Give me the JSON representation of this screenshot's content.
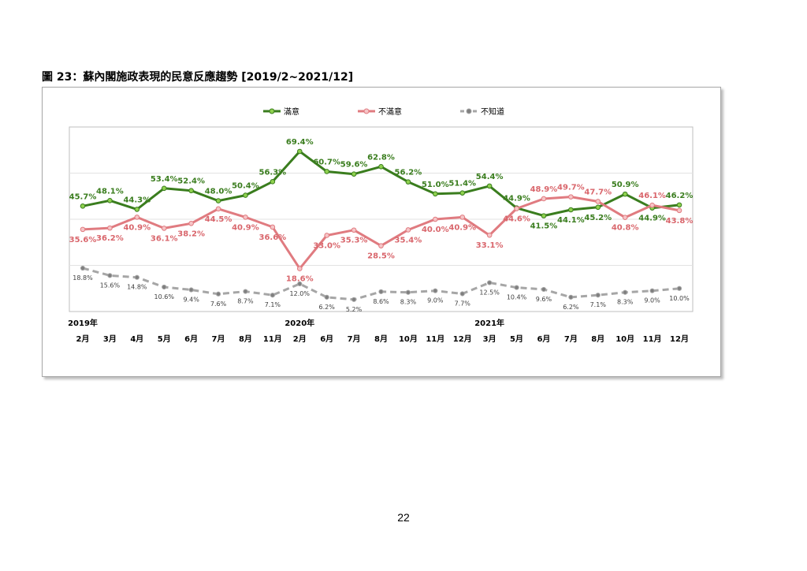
{
  "figure_title": "圖 23：蘇內閣施政表現的民意反應趨勢 [2019/2~2021/12]",
  "page_number": "22",
  "chart_data": {
    "type": "line",
    "categories": [
      "2月",
      "3月",
      "4月",
      "5月",
      "6月",
      "7月",
      "8月",
      "11月",
      "2月",
      "6月",
      "7月",
      "8月",
      "10月",
      "11月",
      "12月",
      "3月",
      "5月",
      "6月",
      "7月",
      "8月",
      "10月",
      "11月",
      "12月"
    ],
    "year_labels": [
      {
        "label": "2019年",
        "index": 0
      },
      {
        "label": "2020年",
        "index": 8
      },
      {
        "label": "2021年",
        "index": 15
      }
    ],
    "legend_position": "top",
    "ylim": [
      0,
      80
    ],
    "grid": "horizontal",
    "series": [
      {
        "name": "滿意",
        "color": "#3a7d1e",
        "marker_color": "#8fd14f",
        "style": "solid",
        "values": [
          45.7,
          48.1,
          44.3,
          53.4,
          52.4,
          48.0,
          50.4,
          56.3,
          69.4,
          60.7,
          59.6,
          62.8,
          56.2,
          51.0,
          51.4,
          54.4,
          44.9,
          41.5,
          44.1,
          45.2,
          50.9,
          44.9,
          46.2
        ],
        "labels": [
          "45.7%",
          "48.1%",
          "44.3%",
          "53.4%",
          "52.4%",
          "48.0%",
          "50.4%",
          "56.3%",
          "69.4%",
          "60.7%",
          "59.6%",
          "62.8%",
          "56.2%",
          "51.0%",
          "51.4%",
          "54.4%",
          "44.9%",
          "41.5%",
          "44.1%",
          "45.2%",
          "50.9%",
          "44.9%",
          "46.2%"
        ]
      },
      {
        "name": "不滿意",
        "color": "#e07b80",
        "marker_color": "#f6c5c7",
        "style": "solid",
        "values": [
          35.6,
          36.2,
          40.9,
          36.1,
          38.2,
          44.5,
          40.9,
          36.6,
          18.6,
          33.0,
          35.3,
          28.5,
          35.4,
          40.0,
          40.9,
          33.1,
          44.6,
          48.9,
          49.7,
          47.7,
          40.8,
          46.1,
          43.8
        ],
        "labels": [
          "35.6%",
          "36.2%",
          "40.9%",
          "36.1%",
          "38.2%",
          "44.5%",
          "40.9%",
          "36.6%",
          "18.6%",
          "33.0%",
          "35.3%",
          "28.5%",
          "35.4%",
          "40.0%",
          "40.9%",
          "33.1%",
          "44.6%",
          "48.9%",
          "49.7%",
          "47.7%",
          "40.8%",
          "46.1%",
          "43.8%"
        ]
      },
      {
        "name": "不知道",
        "color": "#a6a6a6",
        "marker_color": "#7f7f7f",
        "style": "dashed",
        "values": [
          18.8,
          15.6,
          14.8,
          10.6,
          9.4,
          7.6,
          8.7,
          7.1,
          12.0,
          6.2,
          5.2,
          8.6,
          8.3,
          9.0,
          7.7,
          12.5,
          10.4,
          9.6,
          6.2,
          7.1,
          8.3,
          9.0,
          10.0
        ],
        "labels": [
          "18.8%",
          "15.6%",
          "14.8%",
          "10.6%",
          "9.4%",
          "7.6%",
          "8.7%",
          "7.1%",
          "12.0%",
          "6.2%",
          "5.2%",
          "8.6%",
          "8.3%",
          "9.0%",
          "7.7%",
          "12.5%",
          "10.4%",
          "9.6%",
          "6.2%",
          "7.1%",
          "8.3%",
          "9.0%",
          "10.0%"
        ]
      }
    ]
  }
}
